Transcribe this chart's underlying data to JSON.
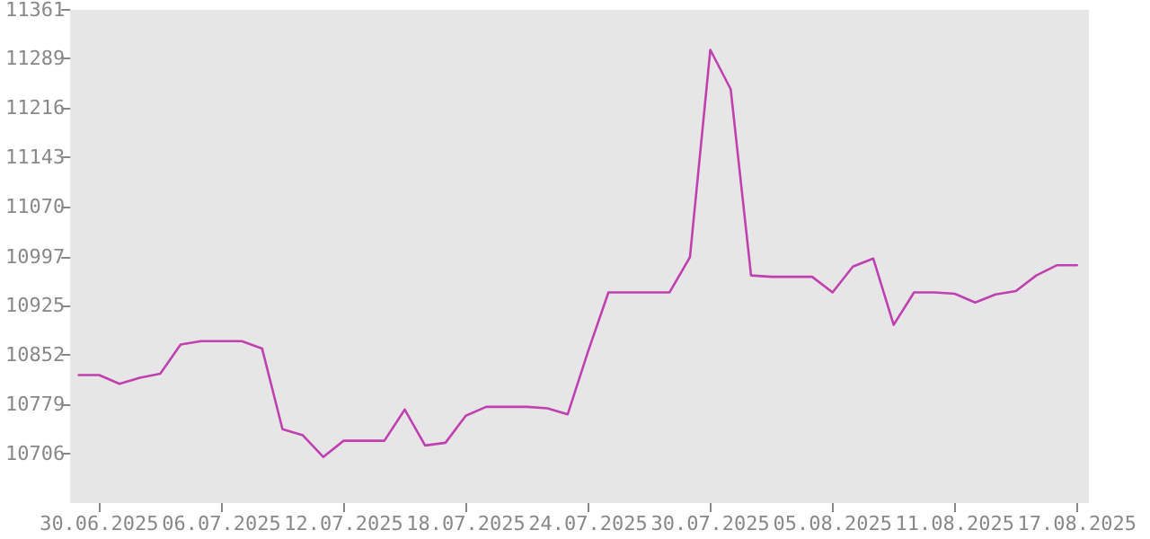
{
  "chart_data": {
    "type": "line",
    "x": [
      "2025-06-29",
      "2025-06-30",
      "2025-07-01",
      "2025-07-02",
      "2025-07-03",
      "2025-07-04",
      "2025-07-05",
      "2025-07-06",
      "2025-07-07",
      "2025-07-08",
      "2025-07-09",
      "2025-07-10",
      "2025-07-11",
      "2025-07-12",
      "2025-07-13",
      "2025-07-14",
      "2025-07-15",
      "2025-07-16",
      "2025-07-17",
      "2025-07-18",
      "2025-07-19",
      "2025-07-20",
      "2025-07-21",
      "2025-07-22",
      "2025-07-23",
      "2025-07-24",
      "2025-07-25",
      "2025-07-26",
      "2025-07-27",
      "2025-07-28",
      "2025-07-29",
      "2025-07-30",
      "2025-07-31",
      "2025-08-01",
      "2025-08-02",
      "2025-08-03",
      "2025-08-04",
      "2025-08-05",
      "2025-08-06",
      "2025-08-07",
      "2025-08-08",
      "2025-08-09",
      "2025-08-10",
      "2025-08-11",
      "2025-08-12",
      "2025-08-13",
      "2025-08-14",
      "2025-08-15",
      "2025-08-16",
      "2025-08-17"
    ],
    "series": [
      {
        "color": "#c040b0",
        "values": [
          10822,
          10822,
          10809,
          10818,
          10824,
          10867,
          10872,
          10872,
          10872,
          10861,
          10742,
          10733,
          10701,
          10725,
          10725,
          10725,
          10771,
          10718,
          10722,
          10762,
          10775,
          10775,
          10775,
          10773,
          10764,
          10857,
          10944,
          10944,
          10944,
          10944,
          10996,
          11302,
          11244,
          10969,
          10967,
          10967,
          10967,
          10944,
          10982,
          10994,
          10896,
          10944,
          10944,
          10942,
          10929,
          10941,
          10946,
          10969,
          10984,
          10984
        ]
      }
    ],
    "xlim": [
      "2025-06-28T14:00",
      "2025-08-17T14:00"
    ],
    "xticks": [
      {
        "value": "2025-06-30",
        "label": "30.06.2025"
      },
      {
        "value": "2025-07-06",
        "label": "06.07.2025"
      },
      {
        "value": "2025-07-12",
        "label": "12.07.2025"
      },
      {
        "value": "2025-07-18",
        "label": "18.07.2025"
      },
      {
        "value": "2025-07-24",
        "label": "24.07.2025"
      },
      {
        "value": "2025-07-30",
        "label": "30.07.2025"
      },
      {
        "value": "2025-08-05",
        "label": "05.08.2025"
      },
      {
        "value": "2025-08-11",
        "label": "11.08.2025"
      },
      {
        "value": "2025-08-17",
        "label": "17.08.2025"
      }
    ],
    "ylim": [
      10633,
      11361
    ],
    "yticks": [
      10706,
      10779,
      10852,
      10925,
      10997,
      11070,
      11143,
      11216,
      11289,
      11361
    ],
    "marker": "none",
    "line_style": "solid"
  }
}
